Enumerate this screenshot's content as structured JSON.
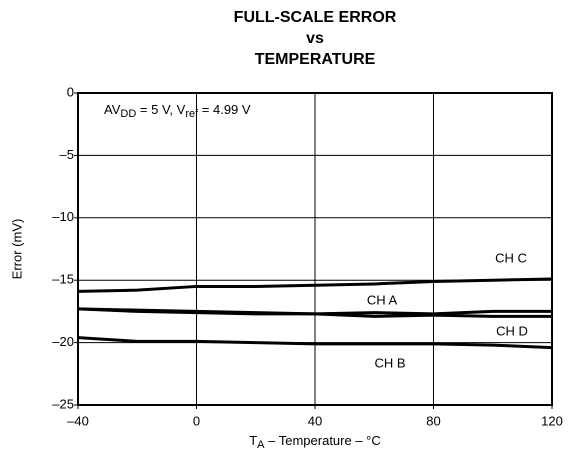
{
  "chart_data": {
    "type": "line",
    "title": [
      "FULL-SCALE ERROR",
      "vs",
      "TEMPERATURE"
    ],
    "annotation": [
      "AV",
      "DD",
      " = 5 V, V",
      "ref",
      " = 4.99 V"
    ],
    "x_label": [
      "T",
      "A",
      " – Temperature – °C"
    ],
    "y_label": "Error (mV)",
    "x": [
      -40,
      -20,
      0,
      20,
      40,
      60,
      80,
      100,
      120
    ],
    "series": [
      {
        "name": "CH C",
        "color": "#000000",
        "values": [
          -15.9,
          -15.8,
          -15.5,
          -15.5,
          -15.4,
          -15.3,
          -15.1,
          -15.0,
          -14.9
        ]
      },
      {
        "name": "CH A",
        "color": "#000000",
        "values": [
          -17.3,
          -17.5,
          -17.6,
          -17.7,
          -17.7,
          -17.6,
          -17.7,
          -17.5,
          -17.5
        ]
      },
      {
        "name": "CH D",
        "color": "#000000",
        "values": [
          -17.3,
          -17.4,
          -17.5,
          -17.6,
          -17.7,
          -17.9,
          -17.8,
          -17.9,
          -17.9
        ]
      },
      {
        "name": "CH B",
        "color": "#000000",
        "values": [
          -19.6,
          -19.9,
          -19.9,
          -20.0,
          -20.1,
          -20.1,
          -20.1,
          -20.2,
          -20.4
        ]
      }
    ],
    "xlim": [
      -40,
      120
    ],
    "xticks": [
      {
        "value": -40,
        "label": "–40"
      },
      0,
      40,
      80,
      120
    ],
    "ylim": [
      -25,
      0
    ],
    "yticks": [
      0,
      {
        "value": -5,
        "label": "–5"
      },
      {
        "value": -10,
        "label": "–10"
      },
      {
        "value": -15,
        "label": "–15"
      },
      {
        "value": -20,
        "label": "–20"
      },
      {
        "value": -25,
        "label": "–25"
      }
    ],
    "grid": true
  }
}
